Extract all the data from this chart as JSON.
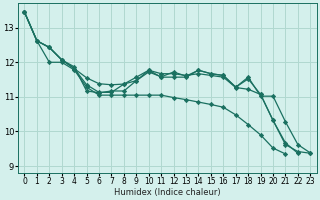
{
  "title": "",
  "xlabel": "Humidex (Indice chaleur)",
  "bg_color": "#d4f0ec",
  "grid_color": "#b0d8d0",
  "line_color": "#1a7060",
  "xlim": [
    -0.5,
    23.5
  ],
  "ylim": [
    8.8,
    13.7
  ],
  "xticks": [
    0,
    1,
    2,
    3,
    4,
    5,
    6,
    7,
    8,
    9,
    10,
    11,
    12,
    13,
    14,
    15,
    16,
    17,
    18,
    19,
    20,
    21,
    22,
    23
  ],
  "yticks": [
    9,
    10,
    11,
    12,
    13
  ],
  "series": [
    [
      13.45,
      12.62,
      12.43,
      12.07,
      11.82,
      11.55,
      11.38,
      11.35,
      11.37,
      11.47,
      11.72,
      11.58,
      11.72,
      11.6,
      11.77,
      11.67,
      11.62,
      11.28,
      11.57,
      11.02,
      11.02,
      10.28,
      9.62,
      9.38
    ],
    [
      13.45,
      12.62,
      12.43,
      12.07,
      11.82,
      11.35,
      11.13,
      11.13,
      11.37,
      11.57,
      11.77,
      11.57,
      11.57,
      11.57,
      11.77,
      11.67,
      11.62,
      11.28,
      11.52,
      11.07,
      10.32,
      9.67,
      9.37,
      null
    ],
    [
      13.45,
      12.62,
      12.43,
      12.07,
      11.87,
      11.17,
      11.12,
      11.17,
      11.17,
      11.47,
      11.77,
      11.67,
      11.67,
      11.62,
      11.67,
      11.62,
      11.57,
      11.27,
      11.22,
      11.07,
      10.32,
      9.62,
      9.42,
      9.37
    ],
    [
      13.45,
      12.62,
      12.0,
      12.0,
      11.78,
      11.28,
      11.05,
      11.05,
      11.05,
      11.05,
      11.05,
      11.05,
      10.98,
      10.92,
      10.85,
      10.78,
      10.7,
      10.48,
      10.2,
      9.9,
      9.52,
      9.35,
      null,
      null
    ]
  ],
  "marker": "D",
  "markersize": 2.2,
  "linewidth": 0.9,
  "xlabel_fontsize": 6.0,
  "tick_fontsize": 5.5
}
